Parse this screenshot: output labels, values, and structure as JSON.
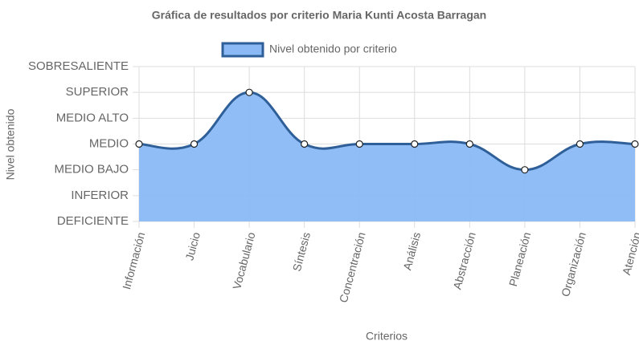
{
  "chart_data": {
    "type": "line",
    "title": "Gráfica de resultados por criterio Maria Kunti Acosta Barragan",
    "x_label": "Criterios",
    "y_label": "Nivel obtenido",
    "categories": [
      "Información",
      "Juicio",
      "Vocabulario",
      "Síntesis",
      "Concentración",
      "Análisis",
      "Abstracción",
      "Planeación",
      "Organización",
      "Atención"
    ],
    "series": [
      {
        "name": "Nivel obtenido por criterio",
        "color": "#2f5f98",
        "fill": "#8ab9f5",
        "values": [
          3,
          3,
          5,
          3,
          3,
          3,
          3,
          2,
          3,
          3
        ]
      }
    ],
    "ylim": [
      0,
      6
    ],
    "yticks": [
      {
        "value": 0,
        "label": "DEFICIENTE"
      },
      {
        "value": 1,
        "label": "INFERIOR"
      },
      {
        "value": 2,
        "label": "MEDIO BAJO"
      },
      {
        "value": 3,
        "label": "MEDIO"
      },
      {
        "value": 4,
        "label": "MEDIO ALTO"
      },
      {
        "value": 5,
        "label": "SUPERIOR"
      },
      {
        "value": 6,
        "label": "SOBRESALIENTE"
      }
    ],
    "grid": true,
    "legend": "top"
  }
}
